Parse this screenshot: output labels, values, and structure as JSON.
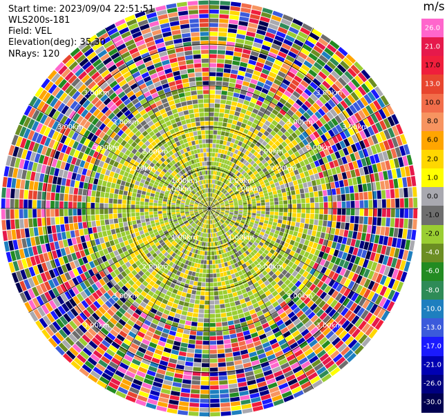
{
  "info": {
    "start_time": "Start time: 2023/09/04 22:51:51",
    "instrument": "WLS200s-181",
    "field": "Field: VEL",
    "elevation": "Elevation(deg): 35.30",
    "nrays": "NRays: 120"
  },
  "colorbar": {
    "unit": "m/s",
    "ticks": [
      "26.0",
      "21.0",
      "17.0",
      "13.0",
      "10.0",
      "8.0",
      "6.0",
      "2.0",
      "1.0",
      "0.0",
      "-1.0",
      "-2.0",
      "-4.0",
      "-6.0",
      "-8.0",
      "-10.0",
      "-13.0",
      "-17.0",
      "-21.0",
      "-26.0",
      "-30.0"
    ],
    "colors": [
      "#ff66cc",
      "#e6194b",
      "#f01e3c",
      "#e8452f",
      "#f26d4a",
      "#f79460",
      "#ffa500",
      "#ffd700",
      "#ffff00",
      "#a9a9b0",
      "#6e6e6e",
      "#9acd32",
      "#6b8e23",
      "#228b22",
      "#2e8b57",
      "#1e7fbf",
      "#3b5bdb",
      "#1a1aff",
      "#0000b3",
      "#000080",
      "#000050"
    ]
  },
  "chart_data": {
    "type": "heatmap",
    "subtype": "PPI polar scan",
    "field": "VEL",
    "units": "m/s",
    "nrays": 120,
    "elevation_deg": 35.3,
    "range_ring_labels": [
      "1.00km",
      "2.00km",
      "3.00km"
    ],
    "colorbar_range": [
      -30.0,
      26.0
    ],
    "pattern": "inner region mostly -2 to 2 m/s (green/grey/yellow), outer gates noisy across full color range"
  }
}
